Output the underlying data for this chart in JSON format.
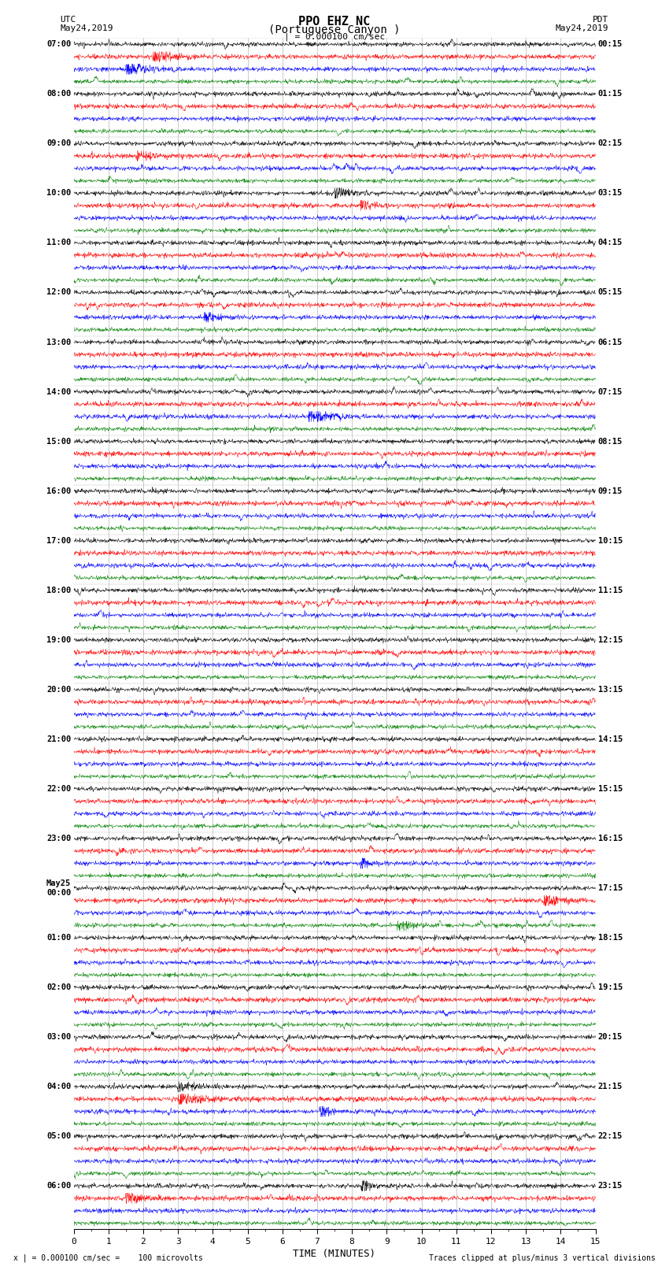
{
  "title_line1": "PPO EHZ NC",
  "title_line2": "(Portuguese Canyon )",
  "scale_label": "| = 0.000100 cm/sec",
  "utc_label": "UTC",
  "utc_date": "May24,2019",
  "pdt_label": "PDT",
  "pdt_date": "May24,2019",
  "bottom_left": "x | = 0.000100 cm/sec =    100 microvolts",
  "bottom_right": "Traces clipped at plus/minus 3 vertical divisions",
  "xlabel": "TIME (MINUTES)",
  "left_times": [
    "07:00",
    "08:00",
    "09:00",
    "10:00",
    "11:00",
    "12:00",
    "13:00",
    "14:00",
    "15:00",
    "16:00",
    "17:00",
    "18:00",
    "19:00",
    "20:00",
    "21:00",
    "22:00",
    "23:00",
    "May25\n00:00",
    "01:00",
    "02:00",
    "03:00",
    "04:00",
    "05:00",
    "06:00"
  ],
  "right_times": [
    "00:15",
    "01:15",
    "02:15",
    "03:15",
    "04:15",
    "05:15",
    "06:15",
    "07:15",
    "08:15",
    "09:15",
    "10:15",
    "11:15",
    "12:15",
    "13:15",
    "14:15",
    "15:15",
    "16:15",
    "17:15",
    "18:15",
    "19:15",
    "20:15",
    "21:15",
    "22:15",
    "23:15"
  ],
  "num_hour_groups": 24,
  "traces_per_group": 4,
  "colors": [
    "black",
    "red",
    "blue",
    "green"
  ],
  "xlim": [
    0,
    15
  ],
  "xticks": [
    0,
    1,
    2,
    3,
    4,
    5,
    6,
    7,
    8,
    9,
    10,
    11,
    12,
    13,
    14,
    15
  ],
  "bg_color": "white",
  "fig_width": 8.5,
  "fig_height": 16.13,
  "dpi": 100
}
